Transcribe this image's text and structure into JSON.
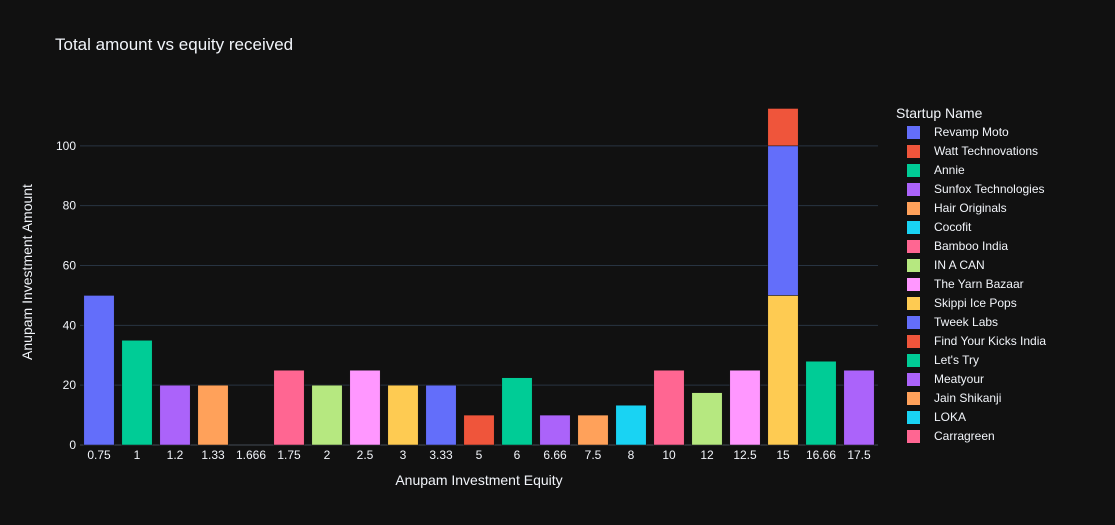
{
  "chart_data": {
    "type": "bar",
    "barmode": "stack",
    "title": "Total amount vs equity received",
    "xlabel": "Anupam Investment Equity",
    "ylabel": "Anupam Investment Amount",
    "ylim": [
      0,
      117
    ],
    "yticks": [
      0,
      20,
      40,
      60,
      80,
      100
    ],
    "grid": true,
    "categories": [
      "0.75",
      "1",
      "1.2",
      "1.33",
      "1.666",
      "1.75",
      "2",
      "2.5",
      "3",
      "3.33",
      "5",
      "6",
      "6.66",
      "7.5",
      "8",
      "10",
      "12",
      "12.5",
      "15",
      "16.66",
      "17.5"
    ],
    "legend_title": "Startup Name",
    "legend_position": "right",
    "series": [
      {
        "name": "Revamp Moto",
        "color": "#636efa",
        "points": [
          {
            "x": "0.75",
            "y": 50
          }
        ]
      },
      {
        "name": "Watt Technovations",
        "color": "#EF553B",
        "points": [
          {
            "x": "5",
            "y": 10
          }
        ]
      },
      {
        "name": "Annie",
        "color": "#00cc96",
        "points": [
          {
            "x": "1",
            "y": 35
          }
        ]
      },
      {
        "name": "Sunfox Technologies",
        "color": "#ab63fa",
        "points": [
          {
            "x": "1.2",
            "y": 20
          }
        ]
      },
      {
        "name": "Hair Originals",
        "color": "#FFA15A",
        "points": [
          {
            "x": "1.33",
            "y": 20
          }
        ]
      },
      {
        "name": "Cocofit",
        "color": "#19d3f3",
        "points": [
          {
            "x": "1.666",
            "y": 0
          }
        ]
      },
      {
        "name": "Bamboo India",
        "color": "#FF6692",
        "points": [
          {
            "x": "1.75",
            "y": 25
          }
        ]
      },
      {
        "name": "IN A CAN",
        "color": "#B6E880",
        "points": [
          {
            "x": "2",
            "y": 20
          }
        ]
      },
      {
        "name": "The Yarn Bazaar",
        "color": "#FF97FF",
        "points": [
          {
            "x": "2.5",
            "y": 25
          }
        ]
      },
      {
        "name": "Skippi Ice Pops",
        "color": "#FECB52",
        "points": [
          {
            "x": "3",
            "y": 20
          },
          {
            "x": "15",
            "y": 50
          }
        ]
      },
      {
        "name": "Tweek Labs",
        "color": "#636efa",
        "points": [
          {
            "x": "3.33",
            "y": 20
          },
          {
            "x": "15",
            "y": 50
          }
        ]
      },
      {
        "name": "Find Your Kicks India",
        "color": "#EF553B",
        "points": [
          {
            "x": "15",
            "y": 12.5
          }
        ]
      },
      {
        "name": "Let's Try",
        "color": "#00cc96",
        "points": [
          {
            "x": "6",
            "y": 22.5
          },
          {
            "x": "16.66",
            "y": 28
          }
        ]
      },
      {
        "name": "Meatyour",
        "color": "#ab63fa",
        "points": [
          {
            "x": "6.66",
            "y": 10
          },
          {
            "x": "17.5",
            "y": 25
          }
        ]
      },
      {
        "name": "Jain Shikanji",
        "color": "#FFA15A",
        "points": [
          {
            "x": "7.5",
            "y": 10
          }
        ]
      },
      {
        "name": "LOKA",
        "color": "#19d3f3",
        "points": [
          {
            "x": "8",
            "y": 13.3
          }
        ]
      },
      {
        "name": "Carragreen",
        "color": "#FF6692",
        "points": [
          {
            "x": "10",
            "y": 25
          }
        ]
      },
      {
        "name": "",
        "color": "#B6E880",
        "points": [
          {
            "x": "12",
            "y": 17.5
          }
        ]
      },
      {
        "name": "",
        "color": "#FF97FF",
        "points": [
          {
            "x": "12.5",
            "y": 25
          }
        ]
      }
    ]
  }
}
